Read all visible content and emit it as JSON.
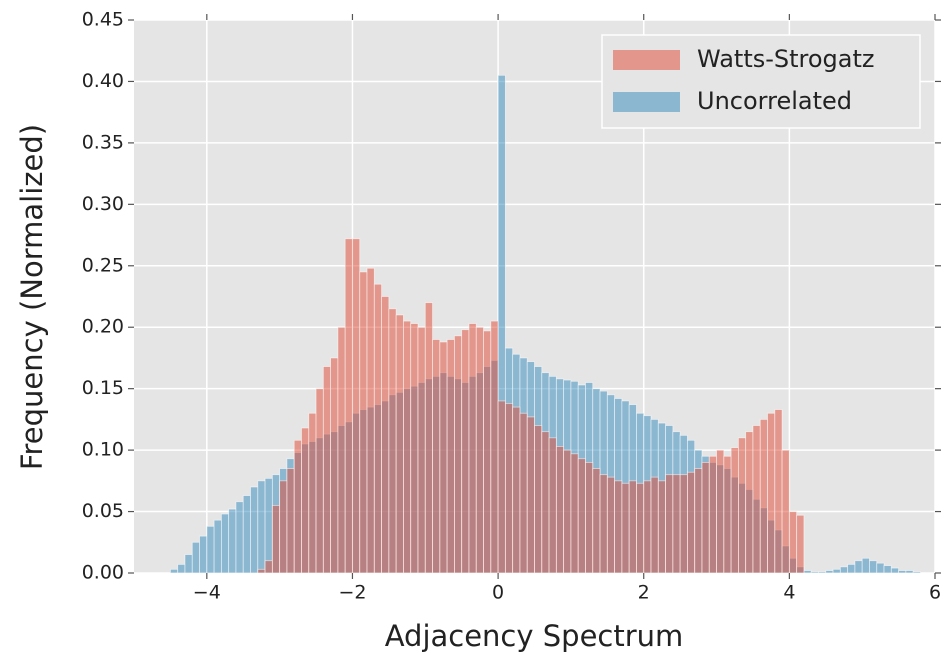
{
  "chart_data": {
    "type": "histogram",
    "xlabel": "Adjacency Spectrum",
    "ylabel": "Frequency (Normalized)",
    "bins": [
      -4.5,
      -4.4,
      -4.3,
      -4.2,
      -4.1,
      -4.0,
      -3.9,
      -3.8,
      -3.7,
      -3.6,
      -3.5,
      -3.4,
      -3.3,
      -3.2,
      -3.1,
      -3.0,
      -2.9,
      -2.8,
      -2.7,
      -2.6,
      -2.5,
      -2.4,
      -2.3,
      -2.2,
      -2.1,
      -2.0,
      -1.9,
      -1.8,
      -1.7,
      -1.6,
      -1.5,
      -1.4,
      -1.3,
      -1.2,
      -1.1,
      -1.0,
      -0.9,
      -0.8,
      -0.7,
      -0.6,
      -0.5,
      -0.4,
      -0.3,
      -0.2,
      -0.1,
      0.0,
      0.1,
      0.2,
      0.3,
      0.4,
      0.5,
      0.6,
      0.7,
      0.8,
      0.9,
      1.0,
      1.1,
      1.2,
      1.3,
      1.4,
      1.5,
      1.6,
      1.7,
      1.8,
      1.9,
      2.0,
      2.1,
      2.2,
      2.3,
      2.4,
      2.5,
      2.6,
      2.7,
      2.8,
      2.9,
      3.0,
      3.1,
      3.2,
      3.3,
      3.4,
      3.5,
      3.6,
      3.7,
      3.8,
      3.9,
      4.0,
      4.1,
      4.2,
      4.3,
      4.4,
      4.5,
      4.6,
      4.7,
      4.8,
      4.9,
      5.0,
      5.1,
      5.2,
      5.3,
      5.4,
      5.5,
      5.6,
      5.7,
      5.8
    ],
    "series": [
      {
        "name": "Uncorrelated",
        "color": "#348ABD",
        "values": [
          0.003,
          0.007,
          0.015,
          0.025,
          0.03,
          0.038,
          0.043,
          0.048,
          0.052,
          0.058,
          0.063,
          0.07,
          0.075,
          0.077,
          0.08,
          0.085,
          0.093,
          0.098,
          0.105,
          0.107,
          0.11,
          0.113,
          0.115,
          0.12,
          0.123,
          0.13,
          0.133,
          0.135,
          0.137,
          0.14,
          0.145,
          0.147,
          0.15,
          0.152,
          0.155,
          0.158,
          0.16,
          0.163,
          0.16,
          0.158,
          0.155,
          0.16,
          0.163,
          0.168,
          0.173,
          0.405,
          0.183,
          0.178,
          0.175,
          0.172,
          0.168,
          0.163,
          0.16,
          0.158,
          0.157,
          0.156,
          0.153,
          0.155,
          0.15,
          0.148,
          0.145,
          0.142,
          0.14,
          0.137,
          0.13,
          0.128,
          0.125,
          0.122,
          0.12,
          0.115,
          0.112,
          0.108,
          0.1,
          0.095,
          0.09,
          0.088,
          0.085,
          0.078,
          0.073,
          0.068,
          0.06,
          0.053,
          0.043,
          0.035,
          0.022,
          0.012,
          0.005,
          0.002,
          0.001,
          0.001,
          0.002,
          0.003,
          0.005,
          0.007,
          0.01,
          0.012,
          0.01,
          0.008,
          0.006,
          0.004,
          0.002,
          0.002,
          0.001
        ]
      },
      {
        "name": "Watts-Strogatz",
        "color": "#E24A33",
        "values": [
          0,
          0,
          0,
          0,
          0,
          0,
          0,
          0,
          0,
          0,
          0,
          0,
          0.003,
          0.01,
          0.055,
          0.075,
          0.085,
          0.108,
          0.118,
          0.13,
          0.15,
          0.168,
          0.175,
          0.2,
          0.272,
          0.272,
          0.245,
          0.248,
          0.235,
          0.225,
          0.215,
          0.21,
          0.205,
          0.203,
          0.2,
          0.22,
          0.19,
          0.188,
          0.19,
          0.193,
          0.198,
          0.203,
          0.2,
          0.197,
          0.205,
          0.14,
          0.138,
          0.135,
          0.13,
          0.127,
          0.12,
          0.115,
          0.11,
          0.103,
          0.1,
          0.097,
          0.093,
          0.09,
          0.085,
          0.08,
          0.078,
          0.075,
          0.073,
          0.075,
          0.073,
          0.075,
          0.078,
          0.075,
          0.08,
          0.08,
          0.08,
          0.082,
          0.085,
          0.09,
          0.095,
          0.1,
          0.095,
          0.102,
          0.11,
          0.115,
          0.12,
          0.125,
          0.13,
          0.133,
          0.1,
          0.05,
          0.047,
          0,
          0,
          0,
          0,
          0,
          0,
          0,
          0,
          0,
          0,
          0,
          0,
          0,
          0,
          0,
          0
        ]
      }
    ],
    "xlim": [
      -5,
      6
    ],
    "ylim": [
      0,
      0.45
    ],
    "xticks": [
      {
        "value": -4,
        "label": "−4"
      },
      {
        "value": -2,
        "label": "−2"
      },
      0,
      2,
      4,
      6
    ],
    "yticks": [
      {
        "value": 0,
        "label": "0.00"
      },
      0.05,
      {
        "value": 0.1,
        "label": "0.10"
      },
      0.15,
      {
        "value": 0.2,
        "label": "0.20"
      },
      0.25,
      {
        "value": 0.3,
        "label": "0.30"
      },
      0.35,
      {
        "value": 0.4,
        "label": "0.40"
      },
      0.45
    ],
    "grid": true,
    "legend": "upper right"
  }
}
